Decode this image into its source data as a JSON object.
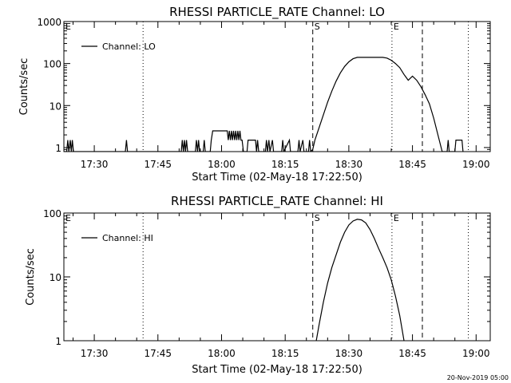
{
  "footer": "20-Nov-2019 05:00",
  "chart_data": [
    {
      "type": "line",
      "title": "RHESSI PARTICLE_RATE Channel: LO",
      "xlabel": "Start Time (02-May-18 17:22:50)",
      "ylabel": "Counts/sec",
      "yscale": "log",
      "xlim": [
        "17:22:50",
        "19:03:20"
      ],
      "ylim": [
        0.8,
        1000
      ],
      "xticks": [
        "17:30",
        "17:45",
        "18:00",
        "18:15",
        "18:30",
        "18:45",
        "19:00"
      ],
      "yticks": [
        "1",
        "10",
        "100",
        "1000"
      ],
      "legend": {
        "position": "top-left",
        "entries": [
          "Channel: LO"
        ]
      },
      "markers": [
        {
          "label": "E",
          "time": "17:22:50",
          "style": "dotted"
        },
        {
          "label": "",
          "time": "17:41:30",
          "style": "dotted"
        },
        {
          "label": "S",
          "time": "18:21:30",
          "style": "dashed"
        },
        {
          "label": "E",
          "time": "18:40:10",
          "style": "dotted"
        },
        {
          "label": "",
          "time": "18:47:20",
          "style": "dashed"
        },
        {
          "label": "",
          "time": "18:58:10",
          "style": "dotted"
        }
      ],
      "series": [
        {
          "name": "Channel: LO",
          "points": [
            [
              "17:22:50",
              0.8
            ],
            [
              "17:23:30",
              0.8
            ],
            [
              "17:23:45",
              1.5
            ],
            [
              "17:24:00",
              0.8
            ],
            [
              "17:24:20",
              1.5
            ],
            [
              "17:24:35",
              0.8
            ],
            [
              "17:24:50",
              1.5
            ],
            [
              "17:25:05",
              0.8
            ],
            [
              "17:37:20",
              0.8
            ],
            [
              "17:37:35",
              1.5
            ],
            [
              "17:37:50",
              0.8
            ],
            [
              "17:50:30",
              0.8
            ],
            [
              "17:50:45",
              1.5
            ],
            [
              "17:51:00",
              0.8
            ],
            [
              "17:51:15",
              1.5
            ],
            [
              "17:51:30",
              0.8
            ],
            [
              "17:51:45",
              1.5
            ],
            [
              "17:52:00",
              0.8
            ],
            [
              "17:53:50",
              0.8
            ],
            [
              "17:54:05",
              1.5
            ],
            [
              "17:54:20",
              0.8
            ],
            [
              "17:54:35",
              1.5
            ],
            [
              "17:54:50",
              0.8
            ],
            [
              "17:55:40",
              0.8
            ],
            [
              "17:55:55",
              1.5
            ],
            [
              "17:56:10",
              0.8
            ],
            [
              "17:57:20",
              0.8
            ],
            [
              "17:57:35",
              1.5
            ],
            [
              "17:57:55",
              2.5
            ],
            [
              "18:01:20",
              2.5
            ],
            [
              "18:01:35",
              1.5
            ],
            [
              "18:01:50",
              2.5
            ],
            [
              "18:02:05",
              1.5
            ],
            [
              "18:02:20",
              2.5
            ],
            [
              "18:02:35",
              1.5
            ],
            [
              "18:02:50",
              2.5
            ],
            [
              "18:03:05",
              1.5
            ],
            [
              "18:03:20",
              2.5
            ],
            [
              "18:03:35",
              1.5
            ],
            [
              "18:03:50",
              2.5
            ],
            [
              "18:04:05",
              1.5
            ],
            [
              "18:04:20",
              2.5
            ],
            [
              "18:04:35",
              1.5
            ],
            [
              "18:04:50",
              1.5
            ],
            [
              "18:05:10",
              0.8
            ],
            [
              "18:06:00",
              0.8
            ],
            [
              "18:06:15",
              1.5
            ],
            [
              "18:08:00",
              1.5
            ],
            [
              "18:08:15",
              0.8
            ],
            [
              "18:08:30",
              1.5
            ],
            [
              "18:08:45",
              0.8
            ],
            [
              "18:10:20",
              0.8
            ],
            [
              "18:10:35",
              1.5
            ],
            [
              "18:10:50",
              0.8
            ],
            [
              "18:11:10",
              1.5
            ],
            [
              "18:11:25",
              0.8
            ],
            [
              "18:12:00",
              1.5
            ],
            [
              "18:12:15",
              0.8
            ],
            [
              "18:14:10",
              0.8
            ],
            [
              "18:14:25",
              1.5
            ],
            [
              "18:14:40",
              0.8
            ],
            [
              "18:16:00",
              1.5
            ],
            [
              "18:16:15",
              0.8
            ],
            [
              "18:18:00",
              0.8
            ],
            [
              "18:18:15",
              1.5
            ],
            [
              "18:18:30",
              0.8
            ],
            [
              "18:19:10",
              1.5
            ],
            [
              "18:19:25",
              0.8
            ],
            [
              "18:20:30",
              0.8
            ],
            [
              "18:20:45",
              1.5
            ],
            [
              "18:21:00",
              0.8
            ],
            [
              "18:21:30",
              0.9
            ],
            [
              "18:22:00",
              1.5
            ],
            [
              "18:23:00",
              3
            ],
            [
              "18:24:00",
              6
            ],
            [
              "18:25:00",
              12
            ],
            [
              "18:26:00",
              22
            ],
            [
              "18:27:00",
              38
            ],
            [
              "18:28:00",
              60
            ],
            [
              "18:29:00",
              85
            ],
            [
              "18:30:00",
              110
            ],
            [
              "18:31:00",
              130
            ],
            [
              "18:32:00",
              140
            ],
            [
              "18:34:00",
              140
            ],
            [
              "18:36:00",
              140
            ],
            [
              "18:38:00",
              140
            ],
            [
              "18:39:00",
              135
            ],
            [
              "18:40:00",
              120
            ],
            [
              "18:41:00",
              100
            ],
            [
              "18:42:00",
              80
            ],
            [
              "18:43:00",
              55
            ],
            [
              "18:44:00",
              40
            ],
            [
              "18:45:00",
              50
            ],
            [
              "18:46:00",
              40
            ],
            [
              "18:47:00",
              28
            ],
            [
              "18:48:00",
              18
            ],
            [
              "18:49:00",
              11
            ],
            [
              "18:50:00",
              5
            ],
            [
              "18:51:00",
              2
            ],
            [
              "18:52:00",
              0.8
            ],
            [
              "18:53:10",
              0.8
            ],
            [
              "18:53:25",
              1.5
            ],
            [
              "18:53:40",
              0.8
            ],
            [
              "18:55:00",
              0.8
            ],
            [
              "18:55:15",
              1.5
            ],
            [
              "18:56:40",
              1.5
            ],
            [
              "18:56:55",
              0.8
            ]
          ]
        }
      ]
    },
    {
      "type": "line",
      "title": "RHESSI PARTICLE_RATE Channel: HI",
      "xlabel": "Start Time (02-May-18 17:22:50)",
      "ylabel": "Counts/sec",
      "yscale": "log",
      "xlim": [
        "17:22:50",
        "19:03:20"
      ],
      "ylim": [
        1,
        100
      ],
      "xticks": [
        "17:30",
        "17:45",
        "18:00",
        "18:15",
        "18:30",
        "18:45",
        "19:00"
      ],
      "yticks": [
        "1",
        "10",
        "100"
      ],
      "legend": {
        "position": "top-left",
        "entries": [
          "Channel: HI"
        ]
      },
      "markers": [
        {
          "label": "E",
          "time": "17:22:50",
          "style": "dotted"
        },
        {
          "label": "",
          "time": "17:41:30",
          "style": "dotted"
        },
        {
          "label": "S",
          "time": "18:21:30",
          "style": "dashed"
        },
        {
          "label": "E",
          "time": "18:40:10",
          "style": "dotted"
        },
        {
          "label": "",
          "time": "18:47:20",
          "style": "dashed"
        },
        {
          "label": "",
          "time": "18:58:10",
          "style": "dotted"
        }
      ],
      "series": [
        {
          "name": "Channel: HI",
          "points": [
            [
              "18:22:20",
              1
            ],
            [
              "18:23:00",
              1.8
            ],
            [
              "18:24:00",
              4
            ],
            [
              "18:25:00",
              8
            ],
            [
              "18:26:00",
              14
            ],
            [
              "18:27:00",
              22
            ],
            [
              "18:28:00",
              35
            ],
            [
              "18:29:00",
              50
            ],
            [
              "18:30:00",
              65
            ],
            [
              "18:31:00",
              75
            ],
            [
              "18:32:00",
              80
            ],
            [
              "18:33:00",
              78
            ],
            [
              "18:34:00",
              70
            ],
            [
              "18:35:00",
              55
            ],
            [
              "18:36:00",
              40
            ],
            [
              "18:37:00",
              28
            ],
            [
              "18:38:00",
              20
            ],
            [
              "18:39:00",
              14
            ],
            [
              "18:40:00",
              9
            ],
            [
              "18:41:00",
              5
            ],
            [
              "18:42:00",
              2.5
            ],
            [
              "18:43:00",
              1
            ]
          ]
        }
      ]
    }
  ]
}
